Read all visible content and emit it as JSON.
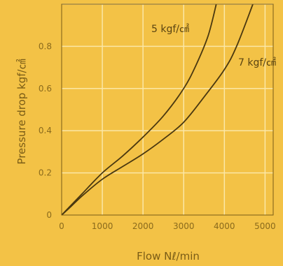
{
  "chart_data": {
    "type": "line",
    "title": "",
    "xlabel": "Flow Nℓ/min",
    "ylabel": "Pressure drop kgf/㎠",
    "xlim": [
      0,
      5200
    ],
    "ylim": [
      0,
      1.0
    ],
    "x_ticks": [
      0,
      1000,
      2000,
      3000,
      4000,
      5000
    ],
    "x_tick_labels": [
      "0",
      "1000",
      "2000",
      "3000",
      "4000",
      "5000"
    ],
    "y_ticks": [
      0,
      0.2,
      0.4,
      0.6,
      0.8
    ],
    "y_tick_labels": [
      "0",
      "0.2",
      "0.4",
      "0.6",
      "0.8"
    ],
    "grid": true,
    "legend": "none",
    "colors": {
      "background": "#f3c246",
      "grid": "#fbe7a6",
      "line": "#4a3810",
      "frame": "#7a5c16"
    },
    "series": [
      {
        "name": "5 kgf/㎠",
        "x": [
          0,
          200,
          500,
          1000,
          1500,
          2000,
          2500,
          3000,
          3300,
          3600,
          3800
        ],
        "y": [
          0,
          0.04,
          0.1,
          0.2,
          0.28,
          0.37,
          0.47,
          0.6,
          0.71,
          0.85,
          1.0
        ]
      },
      {
        "name": "7 kgf/㎠",
        "x": [
          0,
          200,
          500,
          1000,
          1500,
          2000,
          2500,
          3000,
          3500,
          4000,
          4300,
          4700
        ],
        "y": [
          0,
          0.035,
          0.09,
          0.17,
          0.23,
          0.29,
          0.36,
          0.44,
          0.56,
          0.69,
          0.8,
          1.0
        ]
      }
    ]
  }
}
